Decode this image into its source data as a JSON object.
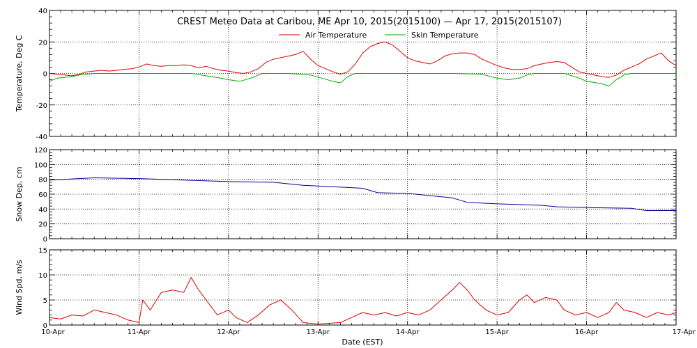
{
  "chart_data": {
    "type": "line",
    "title": "CREST Meteo Data at Caribou, ME   Apr 10, 2015(2015100) — Apr 17, 2015(2015107)",
    "xlabel": "Date (EST)",
    "x_ticks": [
      "10-Apr",
      "11-Apr",
      "12-Apr",
      "13-Apr",
      "14-Apr",
      "15-Apr",
      "16-Apr",
      "17-Apr"
    ],
    "xlim": [
      "2015-04-10",
      "2015-04-17"
    ],
    "grid": true,
    "legend_position": "top-center",
    "panels": [
      {
        "ylabel": "Temperature, Deg C",
        "ylim": [
          -40,
          40
        ],
        "y_ticks": [
          -40,
          -20,
          0,
          20,
          40
        ],
        "series": [
          {
            "name": "Air Temperature",
            "color": "#dd0000",
            "points": [
              [
                "2015-04-10T00:00",
                0
              ],
              [
                "2015-04-10T02:00",
                -0.5
              ],
              [
                "2015-04-10T04:00",
                -1
              ],
              [
                "2015-04-10T06:00",
                -1.5
              ],
              [
                "2015-04-10T08:00",
                -0.5
              ],
              [
                "2015-04-10T10:00",
                1
              ],
              [
                "2015-04-10T12:00",
                1.5
              ],
              [
                "2015-04-10T14:00",
                2
              ],
              [
                "2015-04-10T16:00",
                1.5
              ],
              [
                "2015-04-10T18:00",
                2
              ],
              [
                "2015-04-10T20:00",
                2.5
              ],
              [
                "2015-04-10T22:00",
                3
              ],
              [
                "2015-04-11T00:00",
                4
              ],
              [
                "2015-04-11T02:00",
                6
              ],
              [
                "2015-04-11T04:00",
                5
              ],
              [
                "2015-04-11T06:00",
                4.5
              ],
              [
                "2015-04-11T08:00",
                5
              ],
              [
                "2015-04-11T10:00",
                5
              ],
              [
                "2015-04-11T12:00",
                5.5
              ],
              [
                "2015-04-11T14:00",
                5
              ],
              [
                "2015-04-11T16:00",
                3.5
              ],
              [
                "2015-04-11T18:00",
                4.5
              ],
              [
                "2015-04-11T20:00",
                3
              ],
              [
                "2015-04-11T22:00",
                2
              ],
              [
                "2015-04-12T00:00",
                1.5
              ],
              [
                "2015-04-12T02:00",
                0.5
              ],
              [
                "2015-04-12T04:00",
                0
              ],
              [
                "2015-04-12T06:00",
                1
              ],
              [
                "2015-04-12T08:00",
                3
              ],
              [
                "2015-04-12T10:00",
                7
              ],
              [
                "2015-04-12T12:00",
                9
              ],
              [
                "2015-04-12T14:00",
                10
              ],
              [
                "2015-04-12T16:00",
                11
              ],
              [
                "2015-04-12T18:00",
                12
              ],
              [
                "2015-04-12T20:00",
                14
              ],
              [
                "2015-04-12T22:00",
                9
              ],
              [
                "2015-04-13T00:00",
                5
              ],
              [
                "2015-04-13T02:00",
                3
              ],
              [
                "2015-04-13T04:00",
                1
              ],
              [
                "2015-04-13T06:00",
                -0.5
              ],
              [
                "2015-04-13T08:00",
                1
              ],
              [
                "2015-04-13T10:00",
                6
              ],
              [
                "2015-04-13T12:00",
                13
              ],
              [
                "2015-04-13T14:00",
                17
              ],
              [
                "2015-04-13T16:00",
                19
              ],
              [
                "2015-04-13T18:00",
                20
              ],
              [
                "2015-04-13T20:00",
                18
              ],
              [
                "2015-04-13T22:00",
                14
              ],
              [
                "2015-04-14T00:00",
                10
              ],
              [
                "2015-04-14T02:00",
                8
              ],
              [
                "2015-04-14T04:00",
                7
              ],
              [
                "2015-04-14T06:00",
                6
              ],
              [
                "2015-04-14T08:00",
                8
              ],
              [
                "2015-04-14T10:00",
                11
              ],
              [
                "2015-04-14T12:00",
                12.5
              ],
              [
                "2015-04-14T14:00",
                13
              ],
              [
                "2015-04-14T16:00",
                13
              ],
              [
                "2015-04-14T18:00",
                12
              ],
              [
                "2015-04-14T20:00",
                9
              ],
              [
                "2015-04-14T22:00",
                7
              ],
              [
                "2015-04-15T00:00",
                5
              ],
              [
                "2015-04-15T02:00",
                3.5
              ],
              [
                "2015-04-15T04:00",
                2.5
              ],
              [
                "2015-04-15T06:00",
                2.5
              ],
              [
                "2015-04-15T08:00",
                3
              ],
              [
                "2015-04-15T10:00",
                5
              ],
              [
                "2015-04-15T12:00",
                6
              ],
              [
                "2015-04-15T14:00",
                7
              ],
              [
                "2015-04-15T16:00",
                7.5
              ],
              [
                "2015-04-15T18:00",
                7
              ],
              [
                "2015-04-15T20:00",
                4
              ],
              [
                "2015-04-15T22:00",
                1
              ],
              [
                "2015-04-16T00:00",
                0
              ],
              [
                "2015-04-16T02:00",
                -1
              ],
              [
                "2015-04-16T04:00",
                -2
              ],
              [
                "2015-04-16T06:00",
                -2.5
              ],
              [
                "2015-04-16T08:00",
                -1
              ],
              [
                "2015-04-16T10:00",
                2
              ],
              [
                "2015-04-16T12:00",
                4
              ],
              [
                "2015-04-16T14:00",
                6
              ],
              [
                "2015-04-16T16:00",
                9
              ],
              [
                "2015-04-16T18:00",
                11
              ],
              [
                "2015-04-16T20:00",
                13
              ],
              [
                "2015-04-16T22:00",
                8
              ],
              [
                "2015-04-17T00:00",
                5
              ]
            ]
          },
          {
            "name": "Skin Temperature",
            "color": "#00aa00",
            "points": [
              [
                "2015-04-10T00:00",
                -5
              ],
              [
                "2015-04-10T02:00",
                -3
              ],
              [
                "2015-04-10T04:00",
                -2.5
              ],
              [
                "2015-04-10T06:00",
                -2
              ],
              [
                "2015-04-10T08:00",
                -1
              ],
              [
                "2015-04-10T10:00",
                -0.5
              ],
              [
                "2015-04-10T12:00",
                0
              ],
              [
                "2015-04-10T16:00",
                0
              ],
              [
                "2015-04-11T00:00",
                0
              ],
              [
                "2015-04-11T08:00",
                0
              ],
              [
                "2015-04-11T14:00",
                0
              ],
              [
                "2015-04-11T18:00",
                -1.5
              ],
              [
                "2015-04-11T22:00",
                -3
              ],
              [
                "2015-04-12T00:00",
                -4
              ],
              [
                "2015-04-12T03:00",
                -5
              ],
              [
                "2015-04-12T06:00",
                -3
              ],
              [
                "2015-04-12T09:00",
                0
              ],
              [
                "2015-04-12T16:00",
                0
              ],
              [
                "2015-04-12T22:00",
                -1
              ],
              [
                "2015-04-13T01:00",
                -3
              ],
              [
                "2015-04-13T04:00",
                -5
              ],
              [
                "2015-04-13T06:00",
                -6
              ],
              [
                "2015-04-13T08:00",
                -2
              ],
              [
                "2015-04-13T10:00",
                0
              ],
              [
                "2015-04-14T00:00",
                0
              ],
              [
                "2015-04-14T12:00",
                0
              ],
              [
                "2015-04-14T20:00",
                -0.5
              ],
              [
                "2015-04-15T00:00",
                -3
              ],
              [
                "2015-04-15T03:00",
                -4
              ],
              [
                "2015-04-15T06:00",
                -3
              ],
              [
                "2015-04-15T08:00",
                -1
              ],
              [
                "2015-04-15T10:00",
                0
              ],
              [
                "2015-04-15T18:00",
                0
              ],
              [
                "2015-04-15T22:00",
                -3
              ],
              [
                "2015-04-16T00:00",
                -5
              ],
              [
                "2015-04-16T04:00",
                -6.5
              ],
              [
                "2015-04-16T06:00",
                -8
              ],
              [
                "2015-04-16T08:00",
                -4
              ],
              [
                "2015-04-16T10:00",
                -1
              ],
              [
                "2015-04-16T12:00",
                0
              ],
              [
                "2015-04-16T20:00",
                0
              ],
              [
                "2015-04-17T00:00",
                0
              ]
            ]
          }
        ]
      },
      {
        "ylabel": "Snow Dep, cm",
        "ylim": [
          0,
          120
        ],
        "y_ticks": [
          0,
          20,
          40,
          60,
          80,
          100,
          120
        ],
        "series": [
          {
            "name": "",
            "color": "#000099",
            "points": [
              [
                "2015-04-10T00:00",
                79
              ],
              [
                "2015-04-10T12:00",
                82
              ],
              [
                "2015-04-11T00:00",
                81
              ],
              [
                "2015-04-11T12:00",
                79
              ],
              [
                "2015-04-12T00:00",
                77
              ],
              [
                "2015-04-12T12:00",
                76
              ],
              [
                "2015-04-12T20:00",
                72
              ],
              [
                "2015-04-13T00:00",
                71
              ],
              [
                "2015-04-13T12:00",
                68
              ],
              [
                "2015-04-13T16:00",
                62
              ],
              [
                "2015-04-14T00:00",
                61
              ],
              [
                "2015-04-14T12:00",
                55
              ],
              [
                "2015-04-14T16:00",
                49
              ],
              [
                "2015-04-15T00:00",
                47
              ],
              [
                "2015-04-15T12:00",
                45
              ],
              [
                "2015-04-15T16:00",
                43
              ],
              [
                "2015-04-16T00:00",
                42
              ],
              [
                "2015-04-16T12:00",
                41
              ],
              [
                "2015-04-16T16:00",
                38
              ],
              [
                "2015-04-17T00:00",
                38
              ]
            ]
          }
        ]
      },
      {
        "ylabel": "Wind Spd, m/s",
        "ylim": [
          0,
          15
        ],
        "y_ticks": [
          0,
          5,
          10,
          15
        ],
        "series": [
          {
            "name": "",
            "color": "#dd0000",
            "points": [
              [
                "2015-04-10T00:00",
                1.5
              ],
              [
                "2015-04-10T03:00",
                1.2
              ],
              [
                "2015-04-10T06:00",
                2
              ],
              [
                "2015-04-10T09:00",
                1.8
              ],
              [
                "2015-04-10T12:00",
                3
              ],
              [
                "2015-04-10T15:00",
                2.5
              ],
              [
                "2015-04-10T18:00",
                2
              ],
              [
                "2015-04-10T21:00",
                1
              ],
              [
                "2015-04-11T00:00",
                0.5
              ],
              [
                "2015-04-11T01:00",
                5
              ],
              [
                "2015-04-11T03:00",
                3
              ],
              [
                "2015-04-11T06:00",
                6.5
              ],
              [
                "2015-04-11T09:00",
                7
              ],
              [
                "2015-04-11T12:00",
                6.5
              ],
              [
                "2015-04-11T14:00",
                9.5
              ],
              [
                "2015-04-11T16:00",
                7
              ],
              [
                "2015-04-11T18:00",
                5
              ],
              [
                "2015-04-11T21:00",
                2
              ],
              [
                "2015-04-12T00:00",
                3
              ],
              [
                "2015-04-12T02:00",
                1.5
              ],
              [
                "2015-04-12T05:00",
                0.5
              ],
              [
                "2015-04-12T08:00",
                2
              ],
              [
                "2015-04-12T11:00",
                4
              ],
              [
                "2015-04-12T14:00",
                5
              ],
              [
                "2015-04-12T17:00",
                3
              ],
              [
                "2015-04-12T20:00",
                0.5
              ],
              [
                "2015-04-13T00:00",
                0.2
              ],
              [
                "2015-04-13T06:00",
                0.5
              ],
              [
                "2015-04-13T09:00",
                1.5
              ],
              [
                "2015-04-13T12:00",
                2.5
              ],
              [
                "2015-04-13T15:00",
                2
              ],
              [
                "2015-04-13T18:00",
                2.5
              ],
              [
                "2015-04-13T21:00",
                1.8
              ],
              [
                "2015-04-14T00:00",
                2.5
              ],
              [
                "2015-04-14T03:00",
                2
              ],
              [
                "2015-04-14T06:00",
                3
              ],
              [
                "2015-04-14T09:00",
                5
              ],
              [
                "2015-04-14T12:00",
                7
              ],
              [
                "2015-04-14T14:00",
                8.5
              ],
              [
                "2015-04-14T16:00",
                7
              ],
              [
                "2015-04-14T18:00",
                5
              ],
              [
                "2015-04-14T21:00",
                3
              ],
              [
                "2015-04-15T00:00",
                2
              ],
              [
                "2015-04-15T03:00",
                2.5
              ],
              [
                "2015-04-15T06:00",
                5
              ],
              [
                "2015-04-15T08:00",
                6
              ],
              [
                "2015-04-15T10:00",
                4.5
              ],
              [
                "2015-04-15T13:00",
                5.5
              ],
              [
                "2015-04-15T16:00",
                5
              ],
              [
                "2015-04-15T18:00",
                3
              ],
              [
                "2015-04-15T21:00",
                2
              ],
              [
                "2015-04-16T00:00",
                2.5
              ],
              [
                "2015-04-16T03:00",
                1.5
              ],
              [
                "2015-04-16T06:00",
                2.5
              ],
              [
                "2015-04-16T08:00",
                4.5
              ],
              [
                "2015-04-16T10:00",
                3
              ],
              [
                "2015-04-16T13:00",
                2.5
              ],
              [
                "2015-04-16T16:00",
                1.5
              ],
              [
                "2015-04-16T19:00",
                2.5
              ],
              [
                "2015-04-16T22:00",
                2
              ],
              [
                "2015-04-17T00:00",
                2.5
              ]
            ]
          }
        ]
      }
    ]
  }
}
